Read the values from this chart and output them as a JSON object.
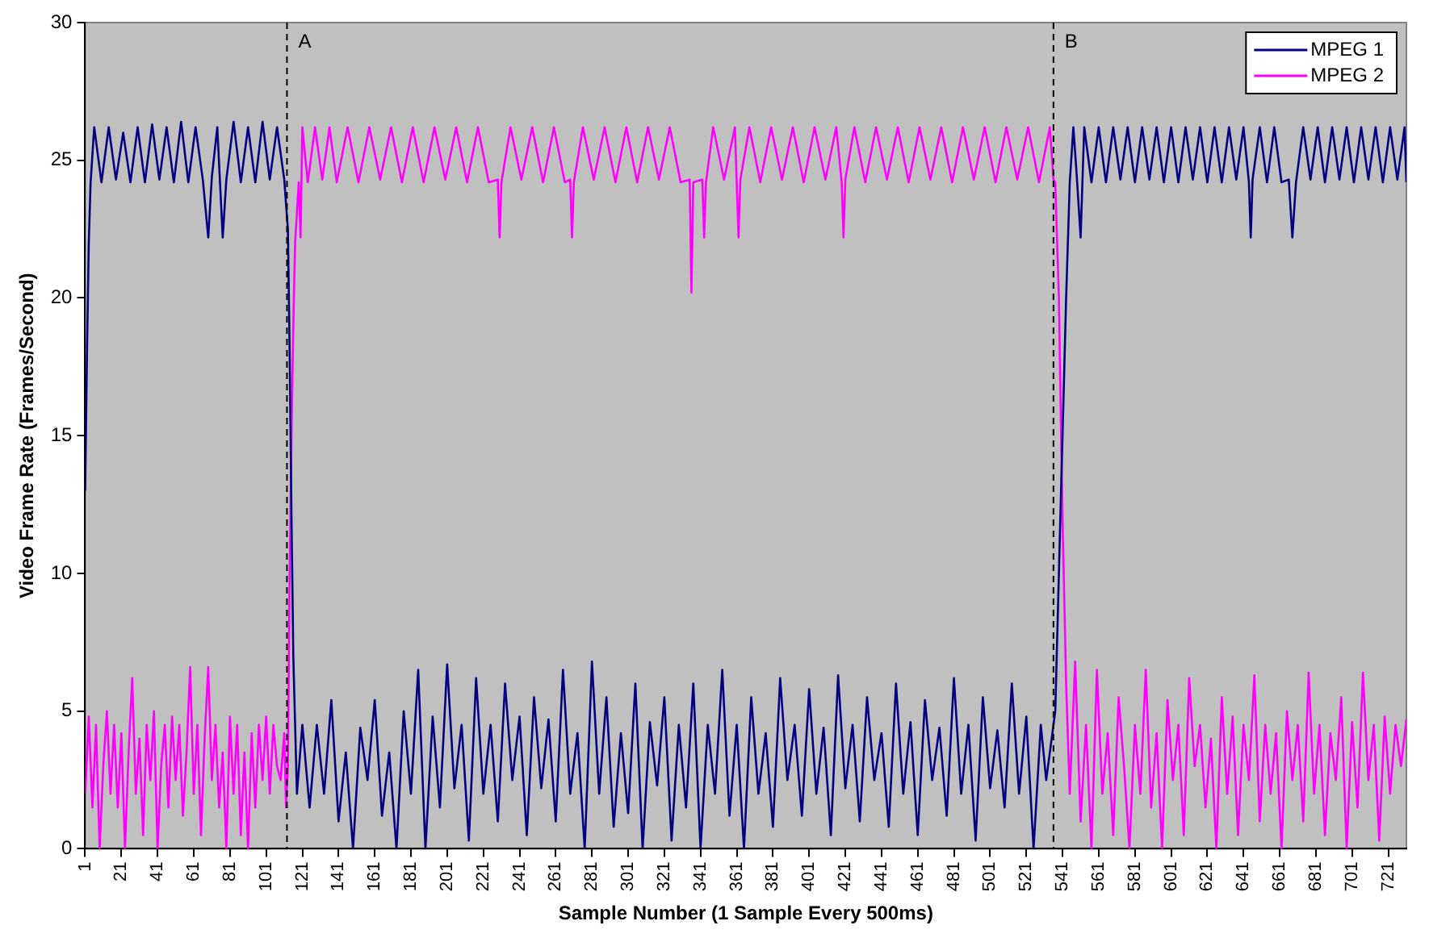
{
  "chart_data": {
    "type": "line",
    "xlabel": "Sample Number (1 Sample Every 500ms)",
    "ylabel": "Video Frame Rate (Frames/Second)",
    "xlim": [
      1,
      731
    ],
    "xticks": [
      1,
      21,
      41,
      61,
      81,
      101,
      121,
      141,
      161,
      181,
      201,
      221,
      241,
      261,
      281,
      301,
      321,
      341,
      361,
      381,
      401,
      421,
      441,
      461,
      481,
      501,
      521,
      541,
      561,
      581,
      601,
      621,
      641,
      661,
      681,
      701,
      721
    ],
    "ylim": [
      0,
      30
    ],
    "yticks": [
      0,
      5,
      10,
      15,
      20,
      25,
      30
    ],
    "grid": false,
    "legend": "top right",
    "ref_lines": [
      {
        "axis": "x",
        "value": 112.5,
        "label": "A",
        "color": "#000000",
        "line_style": "dashed"
      },
      {
        "axis": "x",
        "value": 536,
        "label": "B",
        "color": "#000000",
        "line_style": "dashed"
      }
    ],
    "series": [
      {
        "name": "MPEG 1",
        "color": "#000080",
        "x": [
          1,
          2,
          3,
          4,
          6,
          10,
          14,
          18,
          22,
          26,
          30,
          34,
          38,
          42,
          46,
          50,
          54,
          58,
          62,
          66,
          69,
          71,
          74,
          77,
          79,
          83,
          87,
          91,
          95,
          99,
          103,
          107,
          111,
          113,
          114,
          115,
          116,
          118,
          121,
          125,
          129,
          133,
          137,
          141,
          145,
          149,
          153,
          157,
          161,
          165,
          169,
          173,
          177,
          181,
          185,
          189,
          193,
          197,
          201,
          205,
          209,
          213,
          217,
          221,
          225,
          229,
          233,
          237,
          241,
          245,
          249,
          253,
          257,
          261,
          265,
          269,
          273,
          277,
          281,
          285,
          289,
          293,
          297,
          301,
          305,
          309,
          313,
          317,
          321,
          325,
          329,
          333,
          337,
          341,
          345,
          349,
          353,
          357,
          361,
          365,
          369,
          373,
          377,
          381,
          385,
          389,
          393,
          397,
          401,
          405,
          409,
          413,
          417,
          421,
          425,
          429,
          433,
          437,
          441,
          445,
          449,
          453,
          457,
          461,
          465,
          469,
          473,
          477,
          481,
          485,
          489,
          493,
          497,
          501,
          505,
          509,
          513,
          517,
          521,
          525,
          529,
          532,
          535,
          537,
          539,
          541,
          543,
          545,
          547,
          549,
          551,
          553,
          557,
          561,
          565,
          569,
          573,
          577,
          581,
          585,
          589,
          593,
          597,
          601,
          605,
          609,
          613,
          617,
          621,
          625,
          629,
          633,
          637,
          641,
          644,
          645,
          646,
          650,
          654,
          658,
          662,
          666,
          668,
          670,
          674,
          678,
          682,
          686,
          690,
          694,
          698,
          702,
          706,
          710,
          714,
          718,
          722,
          726,
          730,
          731
        ],
        "values": [
          13,
          18,
          22,
          24.2,
          26.2,
          24.2,
          26.2,
          24.3,
          26,
          24.2,
          26.2,
          24.2,
          26.3,
          24.3,
          26.2,
          24.2,
          26.4,
          24.2,
          26.2,
          24.3,
          22.2,
          24.4,
          26.2,
          22.2,
          24.3,
          26.4,
          24.2,
          26.2,
          24.2,
          26.4,
          24.3,
          26.2,
          24.3,
          22.5,
          18,
          12,
          7,
          2,
          4.5,
          1.5,
          4.5,
          2,
          5.4,
          1,
          3.5,
          0,
          4.4,
          2.5,
          5.4,
          1.2,
          3.5,
          0,
          5,
          2,
          6.5,
          0,
          4.8,
          1.5,
          6.7,
          2.2,
          4.5,
          0.3,
          6.2,
          2,
          4.5,
          1,
          6,
          2.5,
          4.8,
          0.5,
          5.5,
          2.2,
          4.7,
          1,
          6.5,
          2,
          4.2,
          0,
          6.8,
          2,
          5.5,
          0.8,
          4.2,
          1.3,
          6,
          0,
          4.6,
          2.3,
          5.5,
          0.3,
          4.5,
          1.5,
          6,
          0,
          4.5,
          2,
          6.5,
          1.2,
          4.5,
          0,
          5.5,
          2,
          4.2,
          0.8,
          6.2,
          2.5,
          4.5,
          1.2,
          5.8,
          2,
          4.4,
          0.5,
          6.3,
          2.2,
          4.5,
          1,
          5.5,
          2.5,
          4.2,
          0.8,
          6,
          2,
          4.6,
          0.5,
          5.4,
          2.5,
          4.4,
          1.2,
          6.2,
          2,
          4.5,
          0.3,
          5.5,
          2.2,
          4.3,
          1.5,
          6,
          2,
          4.8,
          0,
          4.5,
          2.5,
          4,
          5,
          10,
          15,
          20,
          24.2,
          26.2,
          24.3,
          22.2,
          26.2,
          24.2,
          26.2,
          24.2,
          26.2,
          24.3,
          26.2,
          24.2,
          26.2,
          24.3,
          26.2,
          24.2,
          26.2,
          24.2,
          26.2,
          24.3,
          26.2,
          24.2,
          26.2,
          24.2,
          26.2,
          24.3,
          26.2,
          24.2,
          22.2,
          24.3,
          26.2,
          24.2,
          26.2,
          24.2,
          24.3,
          22.2,
          24.2,
          26.2,
          24.3,
          26.2,
          24.2,
          26.2,
          24.3,
          26.2,
          24.2,
          26.2,
          24.3,
          26.2,
          24.2,
          26.2,
          24.3,
          26.2,
          24.2
        ]
      },
      {
        "name": "MPEG 2",
        "color": "#ff00ff",
        "x": [
          1,
          3,
          5,
          7,
          9,
          11,
          13,
          15,
          17,
          19,
          21,
          23,
          25,
          27,
          29,
          31,
          33,
          35,
          37,
          39,
          41,
          43,
          45,
          47,
          49,
          51,
          53,
          55,
          57,
          59,
          61,
          63,
          65,
          67,
          69,
          71,
          73,
          75,
          77,
          79,
          81,
          83,
          85,
          87,
          89,
          91,
          93,
          95,
          97,
          99,
          101,
          103,
          105,
          107,
          109,
          111,
          112,
          113,
          114,
          115,
          116,
          117,
          119,
          120,
          121,
          124,
          128,
          132,
          136,
          140,
          146,
          152,
          158,
          164,
          170,
          176,
          182,
          188,
          194,
          200,
          206,
          212,
          218,
          224,
          229,
          230,
          231,
          236,
          242,
          248,
          254,
          260,
          266,
          269,
          270,
          271,
          276,
          282,
          288,
          294,
          300,
          306,
          312,
          318,
          324,
          330,
          335,
          336,
          337,
          342,
          343,
          344,
          348,
          354,
          360,
          361,
          362,
          363,
          368,
          374,
          380,
          386,
          392,
          398,
          404,
          410,
          416,
          419,
          420,
          421,
          426,
          432,
          438,
          444,
          450,
          456,
          462,
          468,
          474,
          480,
          486,
          492,
          498,
          504,
          510,
          516,
          522,
          528,
          534,
          536,
          537,
          539,
          541,
          543,
          545,
          548,
          551,
          554,
          557,
          560,
          563,
          566,
          569,
          572,
          575,
          578,
          581,
          584,
          587,
          590,
          593,
          596,
          599,
          602,
          605,
          608,
          611,
          614,
          617,
          620,
          623,
          626,
          629,
          632,
          635,
          638,
          641,
          644,
          647,
          650,
          653,
          656,
          659,
          662,
          665,
          668,
          671,
          674,
          677,
          680,
          683,
          686,
          689,
          692,
          695,
          698,
          701,
          704,
          707,
          710,
          713,
          716,
          719,
          722,
          725,
          728,
          731
        ],
        "values": [
          2,
          4.8,
          1.5,
          4.5,
          0,
          3,
          5,
          2,
          4.5,
          1.5,
          4.2,
          0,
          3.5,
          6.2,
          2,
          4,
          0.5,
          4.5,
          2.5,
          5,
          0,
          3,
          4.5,
          1.5,
          4.8,
          2.5,
          4.5,
          1.2,
          3.5,
          6.6,
          2,
          4.5,
          0.5,
          4,
          6.6,
          2.5,
          4.5,
          1.5,
          3.5,
          0,
          4.8,
          2,
          4.5,
          0.5,
          3.5,
          0,
          4.2,
          1.5,
          4.5,
          2.5,
          4.8,
          2,
          4.5,
          3,
          2.5,
          4.2,
          1.5,
          3,
          10,
          15,
          19,
          22,
          24.2,
          22.2,
          26.2,
          24.2,
          26.2,
          24.3,
          26.2,
          24.2,
          26.2,
          24.2,
          26.2,
          24.3,
          26.2,
          24.2,
          26.2,
          24.2,
          26.2,
          24.3,
          26.2,
          24.2,
          26.2,
          24.2,
          24.3,
          22.2,
          24.2,
          26.2,
          24.3,
          26.2,
          24.2,
          26.2,
          24.2,
          24.3,
          22.2,
          24.2,
          26.2,
          24.3,
          26.2,
          24.2,
          26.2,
          24.2,
          26.2,
          24.3,
          26.2,
          24.2,
          24.3,
          20.2,
          24.2,
          24.3,
          22.2,
          24.2,
          26.2,
          24.3,
          26.2,
          24.2,
          22.2,
          24.3,
          26.2,
          24.2,
          26.2,
          24.3,
          26.2,
          24.2,
          26.2,
          24.3,
          26.2,
          24.2,
          22.2,
          24.3,
          26.2,
          24.2,
          26.2,
          24.3,
          26.2,
          24.2,
          26.2,
          24.3,
          26.2,
          24.2,
          26.2,
          24.3,
          26.2,
          24.2,
          26.2,
          24.3,
          26.2,
          24.2,
          26.2,
          24.3,
          24.2,
          20,
          12,
          6,
          2,
          6.8,
          1,
          4.5,
          0,
          6.5,
          2,
          4.2,
          0.5,
          5.5,
          3,
          0,
          4.5,
          2,
          6.5,
          1.5,
          4.2,
          0,
          5.4,
          2.5,
          4.5,
          0.5,
          6.2,
          3,
          4.5,
          1.5,
          4,
          0,
          5.5,
          2,
          4.8,
          0.5,
          4.5,
          2.5,
          6.3,
          1,
          4.5,
          2,
          4.2,
          0,
          5,
          2.5,
          4.5,
          1,
          6.4,
          2,
          4.5,
          0.5,
          4.2,
          2.5,
          5.5,
          0,
          4.6,
          1.5,
          6.4,
          2.5,
          4.5,
          0.3,
          4.8,
          2,
          4.5,
          3,
          4.7
        ]
      }
    ]
  }
}
